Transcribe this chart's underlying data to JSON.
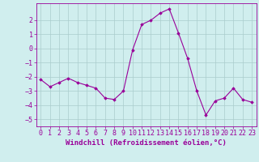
{
  "x": [
    0,
    1,
    2,
    3,
    4,
    5,
    6,
    7,
    8,
    9,
    10,
    11,
    12,
    13,
    14,
    15,
    16,
    17,
    18,
    19,
    20,
    21,
    22,
    23
  ],
  "y": [
    -2.2,
    -2.7,
    -2.4,
    -2.1,
    -2.4,
    -2.6,
    -2.8,
    -3.5,
    -3.6,
    -3.0,
    -0.1,
    1.7,
    2.0,
    2.5,
    2.8,
    1.1,
    -0.7,
    -3.0,
    -4.7,
    -3.7,
    -3.5,
    -2.8,
    -3.6,
    -3.8
  ],
  "line_color": "#990099",
  "marker": "D",
  "marker_size": 1.8,
  "bg_color": "#d0eeee",
  "grid_color": "#aacccc",
  "xlabel": "Windchill (Refroidissement éolien,°C)",
  "xlabel_fontsize": 6.5,
  "tick_fontsize": 6.0,
  "xlim": [
    -0.5,
    23.5
  ],
  "ylim": [
    -5.5,
    3.2
  ],
  "yticks": [
    -5,
    -4,
    -3,
    -2,
    -1,
    0,
    1,
    2
  ],
  "xticks": [
    0,
    1,
    2,
    3,
    4,
    5,
    6,
    7,
    8,
    9,
    10,
    11,
    12,
    13,
    14,
    15,
    16,
    17,
    18,
    19,
    20,
    21,
    22,
    23
  ]
}
